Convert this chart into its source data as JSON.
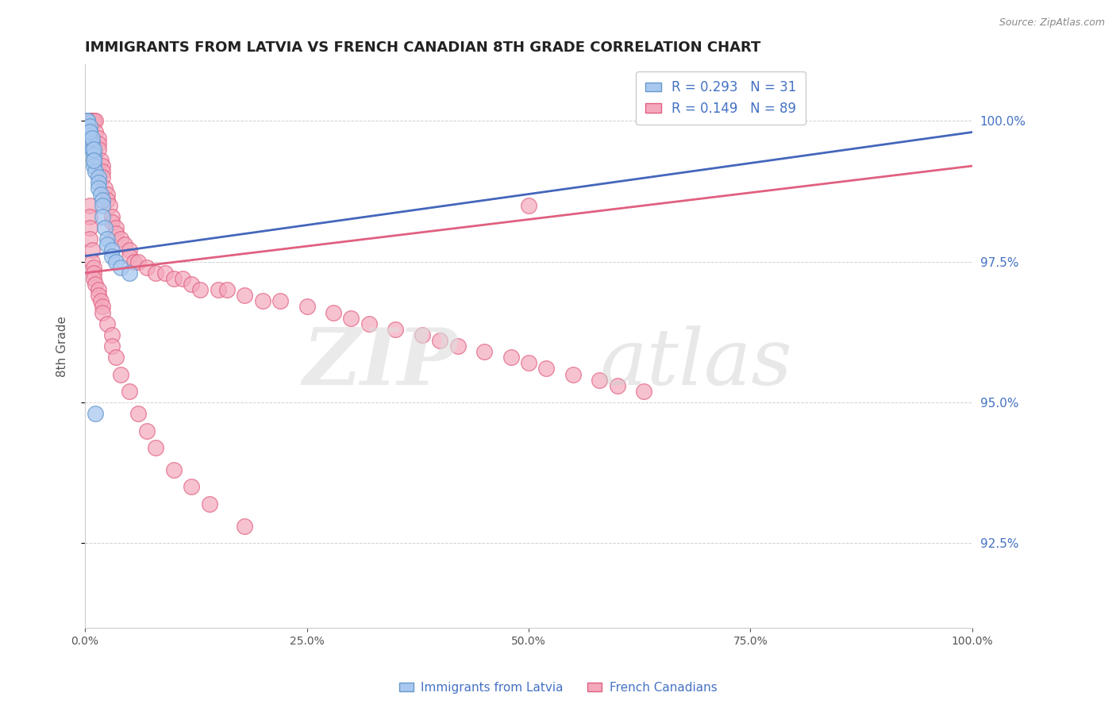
{
  "title": "IMMIGRANTS FROM LATVIA VS FRENCH CANADIAN 8TH GRADE CORRELATION CHART",
  "source_text": "Source: ZipAtlas.com",
  "ylabel": "8th Grade",
  "xlim": [
    0.0,
    100.0
  ],
  "ylim": [
    91.0,
    101.0
  ],
  "yticks": [
    92.5,
    95.0,
    97.5,
    100.0
  ],
  "xticks": [
    0.0,
    25.0,
    50.0,
    75.0,
    100.0
  ],
  "blue_R": 0.293,
  "blue_N": 31,
  "pink_R": 0.149,
  "pink_N": 89,
  "blue_color": "#A8C8F0",
  "pink_color": "#F4A8BC",
  "blue_edge_color": "#6699CC",
  "pink_edge_color": "#E06080",
  "blue_line_color": "#4466BB",
  "pink_line_color": "#E06080",
  "legend_label_blue": "Immigrants from Latvia",
  "legend_label_pink": "French Canadians",
  "blue_scatter_x": [
    0.3,
    0.5,
    0.5,
    0.8,
    0.8,
    1.0,
    1.0,
    1.0,
    1.2,
    1.5,
    1.5,
    1.5,
    1.8,
    2.0,
    2.0,
    2.0,
    2.2,
    2.5,
    2.5,
    3.0,
    3.0,
    3.5,
    4.0,
    5.0,
    0.3,
    0.5,
    0.5,
    0.8,
    1.0,
    1.0,
    1.2
  ],
  "blue_scatter_y": [
    100.0,
    99.8,
    99.7,
    99.6,
    99.5,
    99.4,
    99.3,
    99.2,
    99.1,
    99.0,
    98.9,
    98.8,
    98.7,
    98.6,
    98.5,
    98.3,
    98.1,
    97.9,
    97.8,
    97.7,
    97.6,
    97.5,
    97.4,
    97.3,
    100.0,
    99.9,
    99.8,
    99.7,
    99.5,
    99.3,
    94.8
  ],
  "pink_scatter_x": [
    0.3,
    0.5,
    0.5,
    0.5,
    0.8,
    0.8,
    0.8,
    1.0,
    1.0,
    1.2,
    1.2,
    1.5,
    1.5,
    1.5,
    1.8,
    2.0,
    2.0,
    2.0,
    2.2,
    2.5,
    2.5,
    2.8,
    3.0,
    3.0,
    3.5,
    3.5,
    4.0,
    4.5,
    5.0,
    5.0,
    5.5,
    6.0,
    7.0,
    8.0,
    9.0,
    10.0,
    11.0,
    12.0,
    13.0,
    15.0,
    16.0,
    18.0,
    20.0,
    22.0,
    25.0,
    28.0,
    30.0,
    32.0,
    35.0,
    38.0,
    40.0,
    42.0,
    45.0,
    48.0,
    50.0,
    52.0,
    55.0,
    58.0,
    60.0,
    63.0,
    0.5,
    0.5,
    0.5,
    0.5,
    0.8,
    0.8,
    1.0,
    1.0,
    1.0,
    1.2,
    1.5,
    1.5,
    1.8,
    2.0,
    2.0,
    2.5,
    3.0,
    3.0,
    3.5,
    4.0,
    5.0,
    6.0,
    7.0,
    8.0,
    10.0,
    12.0,
    14.0,
    18.0,
    50.0
  ],
  "pink_scatter_y": [
    100.0,
    100.0,
    100.0,
    100.0,
    100.0,
    100.0,
    100.0,
    100.0,
    100.0,
    100.0,
    99.8,
    99.7,
    99.6,
    99.5,
    99.3,
    99.2,
    99.1,
    99.0,
    98.8,
    98.7,
    98.6,
    98.5,
    98.3,
    98.2,
    98.1,
    98.0,
    97.9,
    97.8,
    97.7,
    97.6,
    97.5,
    97.5,
    97.4,
    97.3,
    97.3,
    97.2,
    97.2,
    97.1,
    97.0,
    97.0,
    97.0,
    96.9,
    96.8,
    96.8,
    96.7,
    96.6,
    96.5,
    96.4,
    96.3,
    96.2,
    96.1,
    96.0,
    95.9,
    95.8,
    95.7,
    95.6,
    95.5,
    95.4,
    95.3,
    95.2,
    98.5,
    98.3,
    98.1,
    97.9,
    97.7,
    97.5,
    97.4,
    97.3,
    97.2,
    97.1,
    97.0,
    96.9,
    96.8,
    96.7,
    96.6,
    96.4,
    96.2,
    96.0,
    95.8,
    95.5,
    95.2,
    94.8,
    94.5,
    94.2,
    93.8,
    93.5,
    93.2,
    92.8,
    98.5
  ],
  "blue_trendline_x": [
    0.0,
    100.0
  ],
  "blue_trendline_y": [
    97.6,
    99.8
  ],
  "pink_trendline_x": [
    0.0,
    100.0
  ],
  "pink_trendline_y": [
    97.3,
    99.2
  ]
}
